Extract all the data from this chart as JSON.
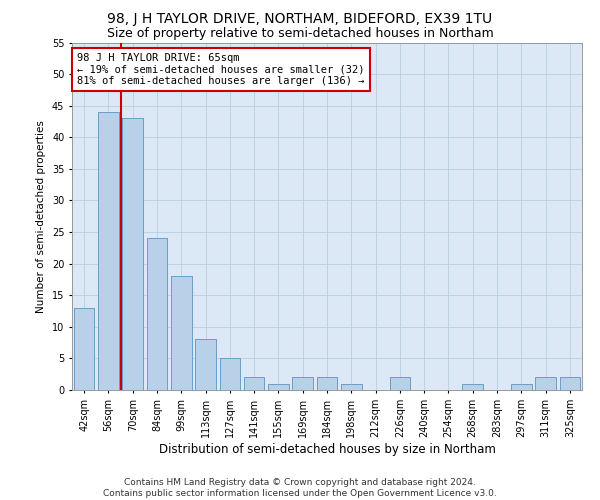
{
  "title": "98, J H TAYLOR DRIVE, NORTHAM, BIDEFORD, EX39 1TU",
  "subtitle": "Size of property relative to semi-detached houses in Northam",
  "xlabel": "Distribution of semi-detached houses by size in Northam",
  "ylabel": "Number of semi-detached properties",
  "categories": [
    "42sqm",
    "56sqm",
    "70sqm",
    "84sqm",
    "99sqm",
    "113sqm",
    "127sqm",
    "141sqm",
    "155sqm",
    "169sqm",
    "184sqm",
    "198sqm",
    "212sqm",
    "226sqm",
    "240sqm",
    "254sqm",
    "268sqm",
    "283sqm",
    "297sqm",
    "311sqm",
    "325sqm"
  ],
  "values": [
    13,
    44,
    43,
    24,
    18,
    8,
    5,
    2,
    1,
    2,
    2,
    1,
    0,
    2,
    0,
    0,
    1,
    0,
    1,
    2,
    2
  ],
  "bar_color": "#b8d0e8",
  "bar_edge_color": "#6a9fc8",
  "property_line_x": 1.5,
  "property_line_color": "#cc0000",
  "annotation_text": "98 J H TAYLOR DRIVE: 65sqm\n← 19% of semi-detached houses are smaller (32)\n81% of semi-detached houses are larger (136) →",
  "annotation_box_color": "#ffffff",
  "annotation_box_edge": "#cc0000",
  "ylim": [
    0,
    55
  ],
  "yticks": [
    0,
    5,
    10,
    15,
    20,
    25,
    30,
    35,
    40,
    45,
    50,
    55
  ],
  "background_color": "#ffffff",
  "axes_bg_color": "#dce8f5",
  "grid_color": "#b8cfe0",
  "footer_line1": "Contains HM Land Registry data © Crown copyright and database right 2024.",
  "footer_line2": "Contains public sector information licensed under the Open Government Licence v3.0.",
  "title_fontsize": 10,
  "subtitle_fontsize": 9,
  "xlabel_fontsize": 8.5,
  "ylabel_fontsize": 7.5,
  "tick_fontsize": 7,
  "annotation_fontsize": 7.5,
  "footer_fontsize": 6.5
}
